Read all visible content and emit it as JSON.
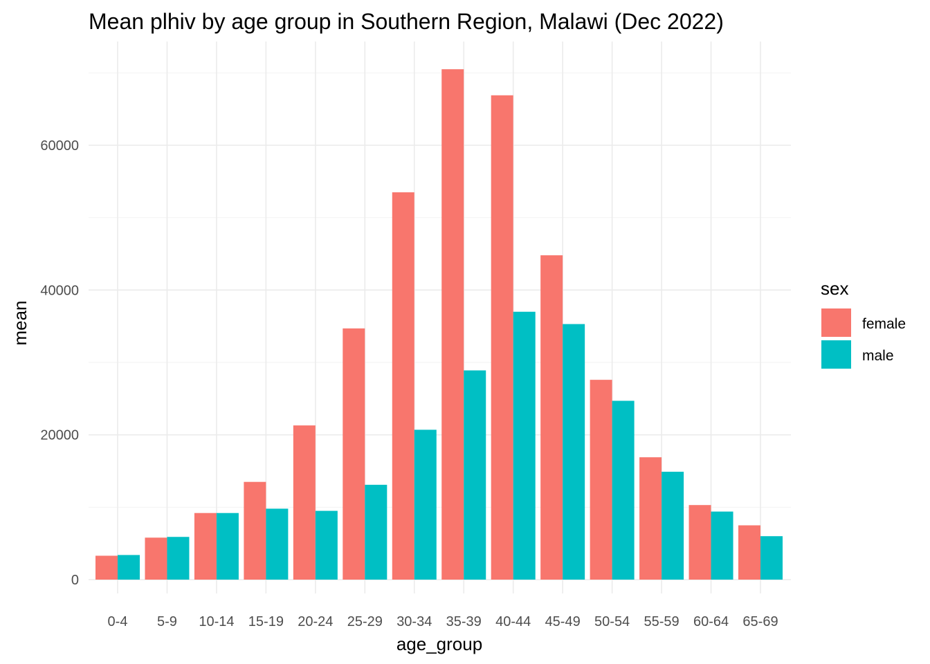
{
  "chart_data": {
    "type": "bar",
    "title": "Mean plhiv by age group in Southern Region, Malawi (Dec 2022)",
    "xlabel": "age_group",
    "ylabel": "mean",
    "categories": [
      "0-4",
      "5-9",
      "10-14",
      "15-19",
      "20-24",
      "25-29",
      "30-34",
      "35-39",
      "40-44",
      "45-49",
      "50-54",
      "55-59",
      "60-64",
      "65-69"
    ],
    "series": [
      {
        "name": "female",
        "color": "#F8766D",
        "values": [
          3300,
          5800,
          9200,
          13500,
          21300,
          34700,
          53500,
          70500,
          66900,
          44800,
          27600,
          16900,
          10300,
          7500
        ]
      },
      {
        "name": "male",
        "color": "#00BFC4",
        "values": [
          3400,
          5900,
          9200,
          9800,
          9500,
          13100,
          20700,
          28900,
          37000,
          35300,
          24700,
          14900,
          9400,
          6000
        ]
      }
    ],
    "ylim": [
      0,
      72000
    ],
    "yticks": [
      0,
      20000,
      40000,
      60000
    ],
    "grid": true,
    "legend": {
      "title": "sex",
      "position": "right"
    }
  }
}
